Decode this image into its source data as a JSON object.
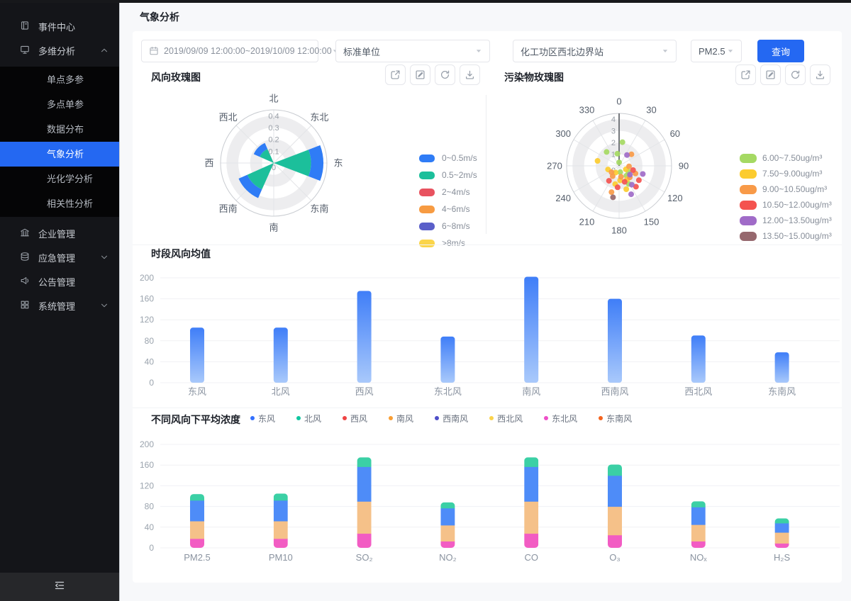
{
  "colors": {
    "accent": "#2468f2",
    "sidebar_bg": "#141519",
    "submenu_bg": "#050506",
    "page_bg": "#f7f8fa",
    "card_bg": "#ffffff",
    "bar_gradient": [
      "#3f7ef8",
      "#a9c9fb"
    ]
  },
  "page": {
    "title": "气象分析"
  },
  "sidebar": {
    "items": [
      {
        "label": "事件中心",
        "icon": "notebook-icon"
      },
      {
        "label": "多维分析",
        "icon": "monitor-icon",
        "expanded": true,
        "children": [
          {
            "label": "单点多参"
          },
          {
            "label": "多点单参"
          },
          {
            "label": "数据分布"
          },
          {
            "label": "气象分析",
            "active": true
          },
          {
            "label": "光化学分析"
          },
          {
            "label": "相关性分析"
          }
        ]
      },
      {
        "label": "企业管理",
        "icon": "building-icon"
      },
      {
        "label": "应急管理",
        "icon": "database-icon",
        "collapsible": true
      },
      {
        "label": "公告管理",
        "icon": "megaphone-icon"
      },
      {
        "label": "系统管理",
        "icon": "grid-icon",
        "collapsible": true
      }
    ],
    "collapse_icon": "menu-fold-icon"
  },
  "filters": {
    "date_range": "2019/09/09 12:00:00~2019/10/09 12:00:00",
    "unit": "标准单位",
    "station": "化工功区西北边界站",
    "pollutant": "PM2.5",
    "query_label": "查询"
  },
  "panel_toolbar_icons": [
    "open-external-icon",
    "edit-icon",
    "refresh-icon",
    "download-icon"
  ],
  "chart_data": [
    {
      "id": "wind-rose",
      "type": "polar-bar",
      "title": "风向玫瑰图",
      "direction_labels": [
        "北",
        "东北",
        "东",
        "东南",
        "南",
        "西南",
        "西",
        "西北"
      ],
      "radial_ticks": [
        0,
        0.1,
        0.2,
        0.3,
        0.4
      ],
      "rmax": 0.45,
      "legend": [
        {
          "label": "0~0.5m/s",
          "color": "#2f7cf6"
        },
        {
          "label": "0.5~2m/s",
          "color": "#1cbf9b"
        },
        {
          "label": "2~4m/s",
          "color": "#e8525f"
        },
        {
          "label": "4~6m/s",
          "color": "#f79b42"
        },
        {
          "label": "6~8m/s",
          "color": "#5a5fc9"
        },
        {
          "label": ">8m/s",
          "color": "#fbd54a"
        }
      ],
      "petals": [
        {
          "direction": "东",
          "angle": 90,
          "segments": [
            {
              "series": "0.5~2m/s",
              "from": 0,
              "to": 0.315
            },
            {
              "series": "0~0.5m/s",
              "from": 0.315,
              "to": 0.42
            }
          ]
        },
        {
          "direction": "西南",
          "angle": 225,
          "segments": [
            {
              "series": "0.5~2m/s",
              "from": 0,
              "to": 0.245
            },
            {
              "series": "0~0.5m/s",
              "from": 0.245,
              "to": 0.325
            }
          ]
        },
        {
          "direction": "西北",
          "angle": 315,
          "segments": [
            {
              "series": "0.5~2m/s",
              "from": 0,
              "to": 0.13
            },
            {
              "series": "0~0.5m/s",
              "from": 0.13,
              "to": 0.185
            }
          ]
        }
      ]
    },
    {
      "id": "pollutant-rose",
      "type": "polar-scatter",
      "title": "污染物玫瑰图",
      "angle_ticks": [
        0,
        30,
        60,
        90,
        120,
        150,
        180,
        210,
        240,
        270,
        300,
        330
      ],
      "radial_ticks": [
        0,
        1,
        2,
        3,
        4
      ],
      "rmax": 4.5,
      "legend": [
        {
          "label": "6.00~7.50ug/m³",
          "color": "#a5d963"
        },
        {
          "label": "7.50~9.00ug/m³",
          "color": "#fccc2f"
        },
        {
          "label": "9.00~10.50ug/m³",
          "color": "#f89a48"
        },
        {
          "label": "10.50~12.00ug/m³",
          "color": "#f4534f"
        },
        {
          "label": "12.00~13.50ug/m³",
          "color": "#a06bc8"
        },
        {
          "label": "13.50~15.00ug/m³",
          "color": "#96686e"
        }
      ],
      "points": [
        [
          8,
          2.05,
          0
        ],
        [
          352,
          1.05,
          0
        ],
        [
          318,
          1.6,
          0
        ],
        [
          0,
          0.3,
          0
        ],
        [
          170,
          0.55,
          0
        ],
        [
          143,
          1.05,
          0
        ],
        [
          152,
          1.75,
          0
        ],
        [
          122,
          0.95,
          0
        ],
        [
          283,
          1.9,
          1
        ],
        [
          252,
          1.0,
          1
        ],
        [
          207,
          0.65,
          1
        ],
        [
          176,
          1.25,
          1
        ],
        [
          150,
          1.35,
          1
        ],
        [
          192,
          1.6,
          1
        ],
        [
          163,
          2.1,
          1
        ],
        [
          117,
          0.65,
          1
        ],
        [
          47,
          1.45,
          2
        ],
        [
          93,
          0.85,
          2
        ],
        [
          212,
          1.05,
          2
        ],
        [
          196,
          2.35,
          2
        ],
        [
          230,
          0.85,
          2
        ],
        [
          137,
          1.35,
          2
        ],
        [
          170,
          0.95,
          2
        ],
        [
          115,
          1.55,
          2
        ],
        [
          126,
          2.1,
          3
        ],
        [
          141,
          2.3,
          3
        ],
        [
          161,
          1.45,
          3
        ],
        [
          184,
          1.85,
          3
        ],
        [
          214,
          1.55,
          3
        ],
        [
          107,
          1.25,
          3
        ],
        [
          36,
          1.15,
          4
        ],
        [
          129,
          1.2,
          4
        ],
        [
          157,
          2.65,
          4
        ],
        [
          109,
          2.15,
          4
        ],
        [
          146,
          1.95,
          4
        ],
        [
          191,
          2.75,
          5
        ]
      ]
    },
    {
      "id": "wind-mean",
      "type": "bar",
      "title": "时段风向均值",
      "categories": [
        "东风",
        "北风",
        "西风",
        "东北风",
        "南风",
        "西南风",
        "西北风",
        "东南风"
      ],
      "values": [
        105,
        105,
        175,
        88,
        202,
        160,
        90,
        58
      ],
      "yticks": [
        0,
        40,
        80,
        120,
        160,
        200
      ],
      "ylim": [
        0,
        200
      ]
    },
    {
      "id": "avg-concentration-by-wind",
      "type": "stacked-bar",
      "title": "不同风向下平均浓度",
      "categories": [
        "PM2.5",
        "PM10",
        "SO₂",
        "NO₂",
        "CO",
        "O₃",
        "NOₓ",
        "H₂S"
      ],
      "legend": [
        {
          "label": "东风",
          "color": "#3370ff"
        },
        {
          "label": "北风",
          "color": "#0fc6a0"
        },
        {
          "label": "西风",
          "color": "#ef4444"
        },
        {
          "label": "南风",
          "color": "#f99e34"
        },
        {
          "label": "西南风",
          "color": "#4e4ec8"
        },
        {
          "label": "西北风",
          "color": "#fbd34c"
        },
        {
          "label": "东北风",
          "color": "#ee4fc8"
        },
        {
          "label": "东南风",
          "color": "#f4641f"
        }
      ],
      "series": [
        {
          "name": "东北风",
          "color": "#f25cc3",
          "values": [
            18,
            18,
            28,
            13,
            28,
            25,
            13,
            9
          ]
        },
        {
          "name": "南风",
          "color": "#f5c189",
          "values": [
            34,
            34,
            62,
            31,
            62,
            55,
            32,
            21
          ]
        },
        {
          "name": "东风",
          "color": "#4e8cf8",
          "values": [
            40,
            40,
            67,
            33,
            67,
            60,
            34,
            18
          ]
        },
        {
          "name": "北风",
          "color": "#3bd0a5",
          "values": [
            12,
            13,
            18,
            11,
            18,
            21,
            11,
            9
          ]
        }
      ],
      "yticks": [
        0,
        40,
        80,
        120,
        160,
        200
      ],
      "ylim": [
        0,
        200
      ]
    }
  ]
}
